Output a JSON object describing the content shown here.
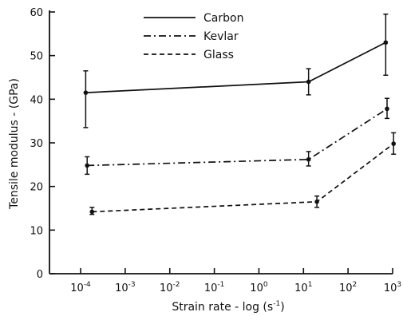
{
  "chart_data": {
    "type": "line",
    "title": "",
    "xlabel": {
      "text": "Strain rate - log (s",
      "sup": "-1",
      "close": ")"
    },
    "ylabel": "Tensile modulus - (GPa)",
    "x_scale": "log",
    "xlim": [
      2e-05,
      1000
    ],
    "ylim": [
      0,
      60
    ],
    "y_ticks": [
      0,
      10,
      20,
      30,
      40,
      50,
      60
    ],
    "x_ticks": [
      {
        "value": 0.0001,
        "base": "10",
        "exp": "-4"
      },
      {
        "value": 0.001,
        "base": "10",
        "exp": "-3"
      },
      {
        "value": 0.01,
        "base": "10",
        "exp": "-2"
      },
      {
        "value": 0.1,
        "base": "10",
        "exp": "-1"
      },
      {
        "value": 1,
        "base": "10",
        "exp": "0"
      },
      {
        "value": 10,
        "base": "10",
        "exp": "1"
      },
      {
        "value": 100,
        "base": "10",
        "exp": "2"
      },
      {
        "value": 1000,
        "base": "10",
        "exp": "3"
      }
    ],
    "grid": false,
    "legend_position": "top-center",
    "series": [
      {
        "name": "Carbon",
        "line_style": "solid",
        "points": [
          {
            "x": 0.00013,
            "y": 41.5,
            "err_low": 33.5,
            "err_high": 46.5
          },
          {
            "x": 13,
            "y": 44,
            "err_low": 41,
            "err_high": 47
          },
          {
            "x": 700,
            "y": 53,
            "err_low": 45.5,
            "err_high": 59.5
          }
        ]
      },
      {
        "name": "Kevlar",
        "line_style": "dashdot",
        "points": [
          {
            "x": 0.00014,
            "y": 24.8,
            "err_low": 22.8,
            "err_high": 26.8
          },
          {
            "x": 13,
            "y": 26.2,
            "err_low": 24.7,
            "err_high": 28
          },
          {
            "x": 750,
            "y": 37.8,
            "err_low": 35.6,
            "err_high": 40.2
          }
        ]
      },
      {
        "name": "Glass",
        "line_style": "dashed",
        "points": [
          {
            "x": 0.00018,
            "y": 14.2,
            "err_low": 13.6,
            "err_high": 15.2
          },
          {
            "x": 20,
            "y": 16.5,
            "err_low": 15.2,
            "err_high": 17.8
          },
          {
            "x": 1050,
            "y": 29.8,
            "err_low": 27.4,
            "err_high": 32.3
          }
        ]
      }
    ]
  }
}
